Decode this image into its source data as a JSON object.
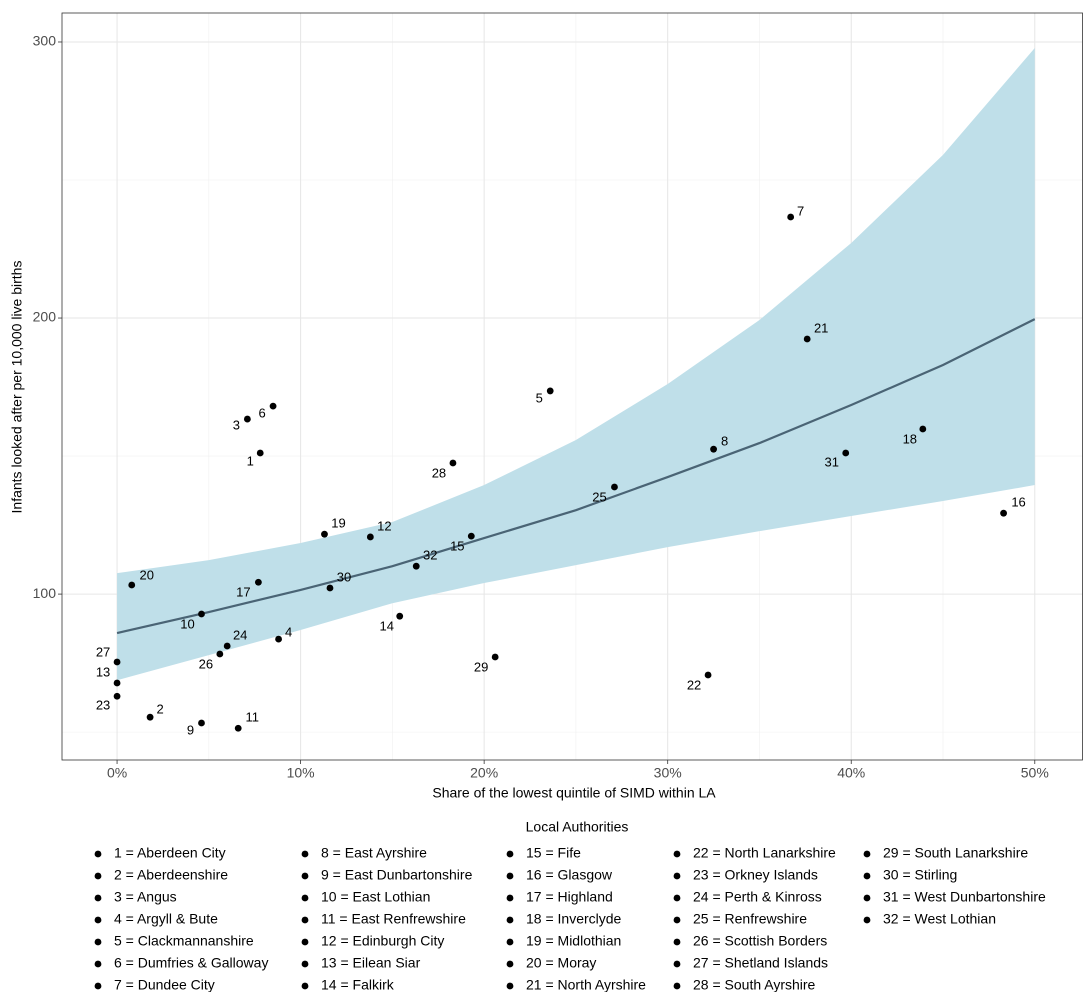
{
  "chart_data": {
    "type": "scatter",
    "x_label": "Share of the lowest quintile of SIMD within LA",
    "y_label": "Infants looked after per 10,000 live births",
    "xlim": [
      -3,
      52.6
    ],
    "ylim": [
      39.9,
      310.5
    ],
    "xticks": [
      {
        "value": 0,
        "label": "0%"
      },
      {
        "value": 10,
        "label": "10%"
      },
      {
        "value": 20,
        "label": "20%"
      },
      {
        "value": 30,
        "label": "30%"
      },
      {
        "value": 40,
        "label": "40%"
      },
      {
        "value": 50,
        "label": "50%"
      }
    ],
    "yticks": [
      100,
      200,
      300
    ],
    "x_minor_ticks": [
      5,
      15,
      25,
      35,
      45
    ],
    "y_minor_ticks": [
      50,
      150,
      250
    ],
    "grid": true,
    "point_color": "#000000",
    "point_labels": [
      "1",
      "2",
      "3",
      "4",
      "5",
      "6",
      "7",
      "8",
      "9",
      "10",
      "11",
      "12",
      "13",
      "14",
      "15",
      "16",
      "17",
      "18",
      "19",
      "20",
      "21",
      "22",
      "23",
      "24",
      "25",
      "26",
      "27",
      "28",
      "29",
      "30",
      "31",
      "32"
    ],
    "x": [
      7.8,
      1.8,
      7.1,
      8.8,
      23.6,
      8.5,
      36.7,
      32.5,
      4.6,
      4.6,
      6.6,
      13.8,
      0,
      15.4,
      19.3,
      48.3,
      7.7,
      43.9,
      11.3,
      0.8,
      37.6,
      32.2,
      0,
      6.0,
      27.1,
      5.6,
      0,
      18.3,
      20.6,
      11.6,
      39.7,
      16.3
    ],
    "values": [
      151.1,
      55.4,
      163.4,
      83.7,
      173.6,
      168.1,
      236.6,
      152.5,
      53.3,
      92.8,
      51.4,
      120.7,
      67.8,
      92.0,
      121.0,
      129.3,
      104.3,
      159.8,
      121.7,
      103.3,
      192.4,
      70.7,
      63.0,
      81.2,
      138.8,
      78.3,
      75.4,
      147.5,
      77.2,
      102.2,
      151.1,
      110.1
    ],
    "fit": {
      "line_color": "#4a6475",
      "band_color": "#bfdfe9",
      "x": [
        0,
        5,
        10,
        15,
        20,
        25,
        30,
        35,
        40,
        45,
        50
      ],
      "values": [
        85.9,
        93.5,
        101.5,
        110.1,
        120.3,
        130.4,
        142.4,
        154.7,
        168.5,
        183.0,
        199.6
      ],
      "lower": [
        68.8,
        77.9,
        87.0,
        96.7,
        104.0,
        110.5,
        117.0,
        122.8,
        128.3,
        133.7,
        139.5
      ],
      "upper": [
        107.6,
        112.3,
        118.5,
        126.1,
        139.5,
        155.8,
        176.1,
        199.3,
        227.2,
        259.1,
        297.8
      ]
    },
    "legend": {
      "title": "Local Authorities",
      "position": "bottom",
      "rows": 7,
      "items": [
        "1 = Aberdeen City",
        "2 = Aberdeenshire",
        "3 = Angus",
        "4 = Argyll & Bute",
        "5 = Clackmannanshire",
        "6 = Dumfries & Galloway",
        "7 = Dundee City",
        "8 = East Ayrshire",
        "9 = East Dunbartonshire",
        "10 = East Lothian",
        "11 = East Renfrewshire",
        "12 = Edinburgh City",
        "13 = Eilean Siar",
        "14 = Falkirk",
        "15 = Fife",
        "16 = Glasgow",
        "17 = Highland",
        "18 = Inverclyde",
        "19 = Midlothian",
        "20 = Moray",
        "21 = North Ayrshire",
        "22 = North Lanarkshire",
        "23 = Orkney Islands",
        "24 = Perth & Kinross",
        "25 = Renfrewshire",
        "26 = Scottish Borders",
        "27 = Shetland Islands",
        "28 = South Ayrshire",
        "29 = South Lanarkshire",
        "30 = Stirling",
        "31 = West Dunbartonshire",
        "32 = West Lothian"
      ]
    }
  }
}
